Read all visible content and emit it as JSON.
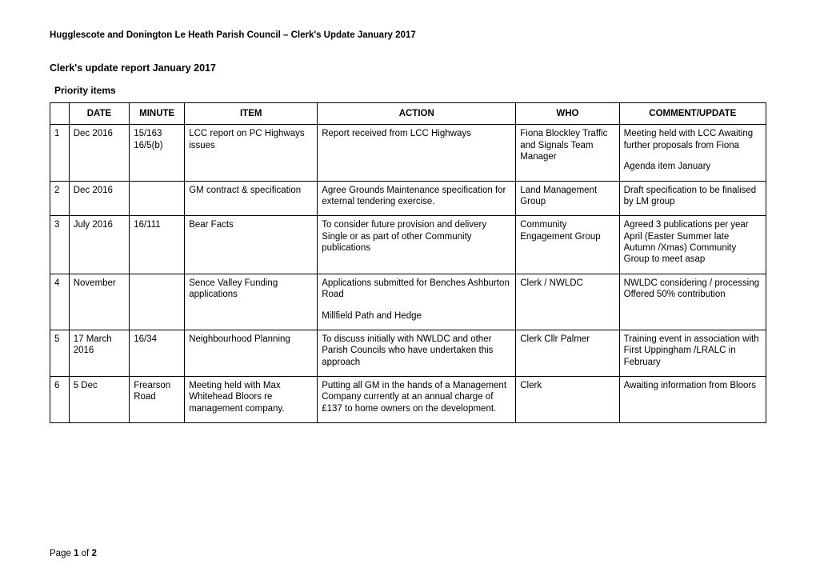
{
  "header": "Hugglescote and Donington Le Heath Parish Council – Clerk's Update January 2017",
  "title": "Clerk's update report January 2017",
  "subheading": "Priority items",
  "columns": [
    "",
    "DATE",
    "MINUTE",
    "ITEM",
    "ACTION",
    "WHO",
    "COMMENT/UPDATE"
  ],
  "rows": [
    {
      "num": "1",
      "date": "Dec 2016",
      "minute": "15/163 16/5(b)",
      "item": "LCC report on PC Highways issues",
      "action": "Report received from LCC Highways",
      "who": "Fiona Blockley Traffic and Signals Team Manager",
      "comment": "Meeting held with LCC Awaiting further proposals from Fiona",
      "comment2": "Agenda item January"
    },
    {
      "num": "2",
      "date": "Dec 2016",
      "minute": "",
      "item": "GM  contract & specification",
      "action": "Agree Grounds Maintenance specification for external tendering exercise.",
      "who": "Land Management Group",
      "comment": "Draft specification to be finalised by LM group"
    },
    {
      "num": "3",
      "date": "July 2016",
      "minute": "16/111",
      "item": "Bear Facts",
      "action": "To consider future provision and delivery\nSingle or as part of other Community publications",
      "who": "Community Engagement Group",
      "comment": "Agreed 3 publications per year April (Easter Summer late Autumn /Xmas) Community Group to meet asap"
    },
    {
      "num": "4",
      "date": "November",
      "minute": "",
      "item": "Sence Valley Funding applications",
      "action": "Applications submitted for Benches Ashburton Road",
      "action2": "Millfield Path and Hedge",
      "who": "Clerk / NWLDC",
      "comment": "NWLDC considering / processing\nOffered 50% contribution"
    },
    {
      "num": "5",
      "date": "17 March 2016",
      "minute": "16/34",
      "item": "Neighbourhood Planning",
      "action": "To discuss initially with NWLDC and other Parish Councils who have undertaken this approach",
      "who": "Clerk Cllr Palmer",
      "comment": "Training event in association with First Uppingham /LRALC  in February"
    },
    {
      "num": "6",
      "date": "5 Dec",
      "minute": "Frearson Road",
      "item": "Meeting held with Max Whitehead Bloors re management company.",
      "action": "Putting all GM in the hands of a Management Company  currently at an annual charge of £137 to home owners on the development.",
      "who": "Clerk",
      "comment": "Awaiting information from Bloors"
    }
  ],
  "footer": {
    "prefix": "Page ",
    "current": "1",
    "of": " of ",
    "total": "2"
  }
}
